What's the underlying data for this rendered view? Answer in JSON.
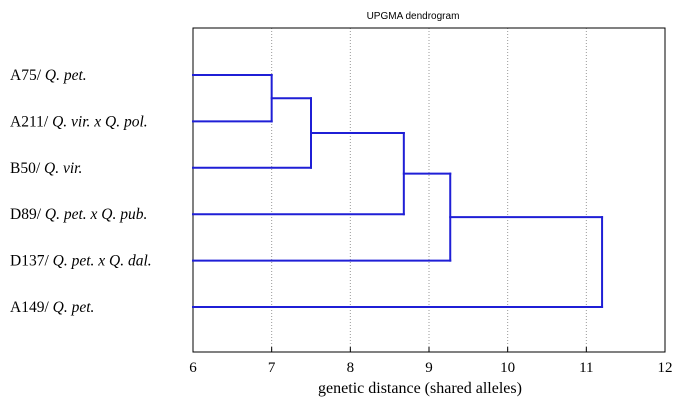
{
  "chart_data": {
    "type": "dendrogram",
    "title": "UPGMA dendrogram",
    "xlabel": "genetic distance (shared alleles)",
    "ylabel": "",
    "xlim": [
      6,
      12
    ],
    "x_ticks": [
      "6",
      "7",
      "8",
      "9",
      "10",
      "11",
      "12"
    ],
    "grid": "vertical dotted",
    "leaves": [
      {
        "prefix": "A75/ ",
        "taxon": "Q. pet."
      },
      {
        "prefix": "A211/ ",
        "taxon": "Q. vir. x Q. pol."
      },
      {
        "prefix": "B50/ ",
        "taxon": "Q. vir."
      },
      {
        "prefix": "D89/ ",
        "taxon": "Q. pet. x Q. pub."
      },
      {
        "prefix": "D137/ ",
        "taxon": "Q. pet. x Q. dal."
      },
      {
        "prefix": "A149/ ",
        "taxon": "Q. pet."
      }
    ],
    "merges": [
      {
        "members": [
          0,
          1
        ],
        "height": 7.0
      },
      {
        "members": [
          0,
          1,
          2
        ],
        "height": 7.5
      },
      {
        "members": [
          0,
          1,
          2,
          3
        ],
        "height": 8.68
      },
      {
        "members": [
          0,
          1,
          2,
          3,
          4
        ],
        "height": 9.27
      },
      {
        "members": [
          0,
          1,
          2,
          3,
          4,
          5
        ],
        "height": 11.2
      }
    ],
    "line_color": "#1f1fd6",
    "grid_color": "#9a9a9a"
  }
}
